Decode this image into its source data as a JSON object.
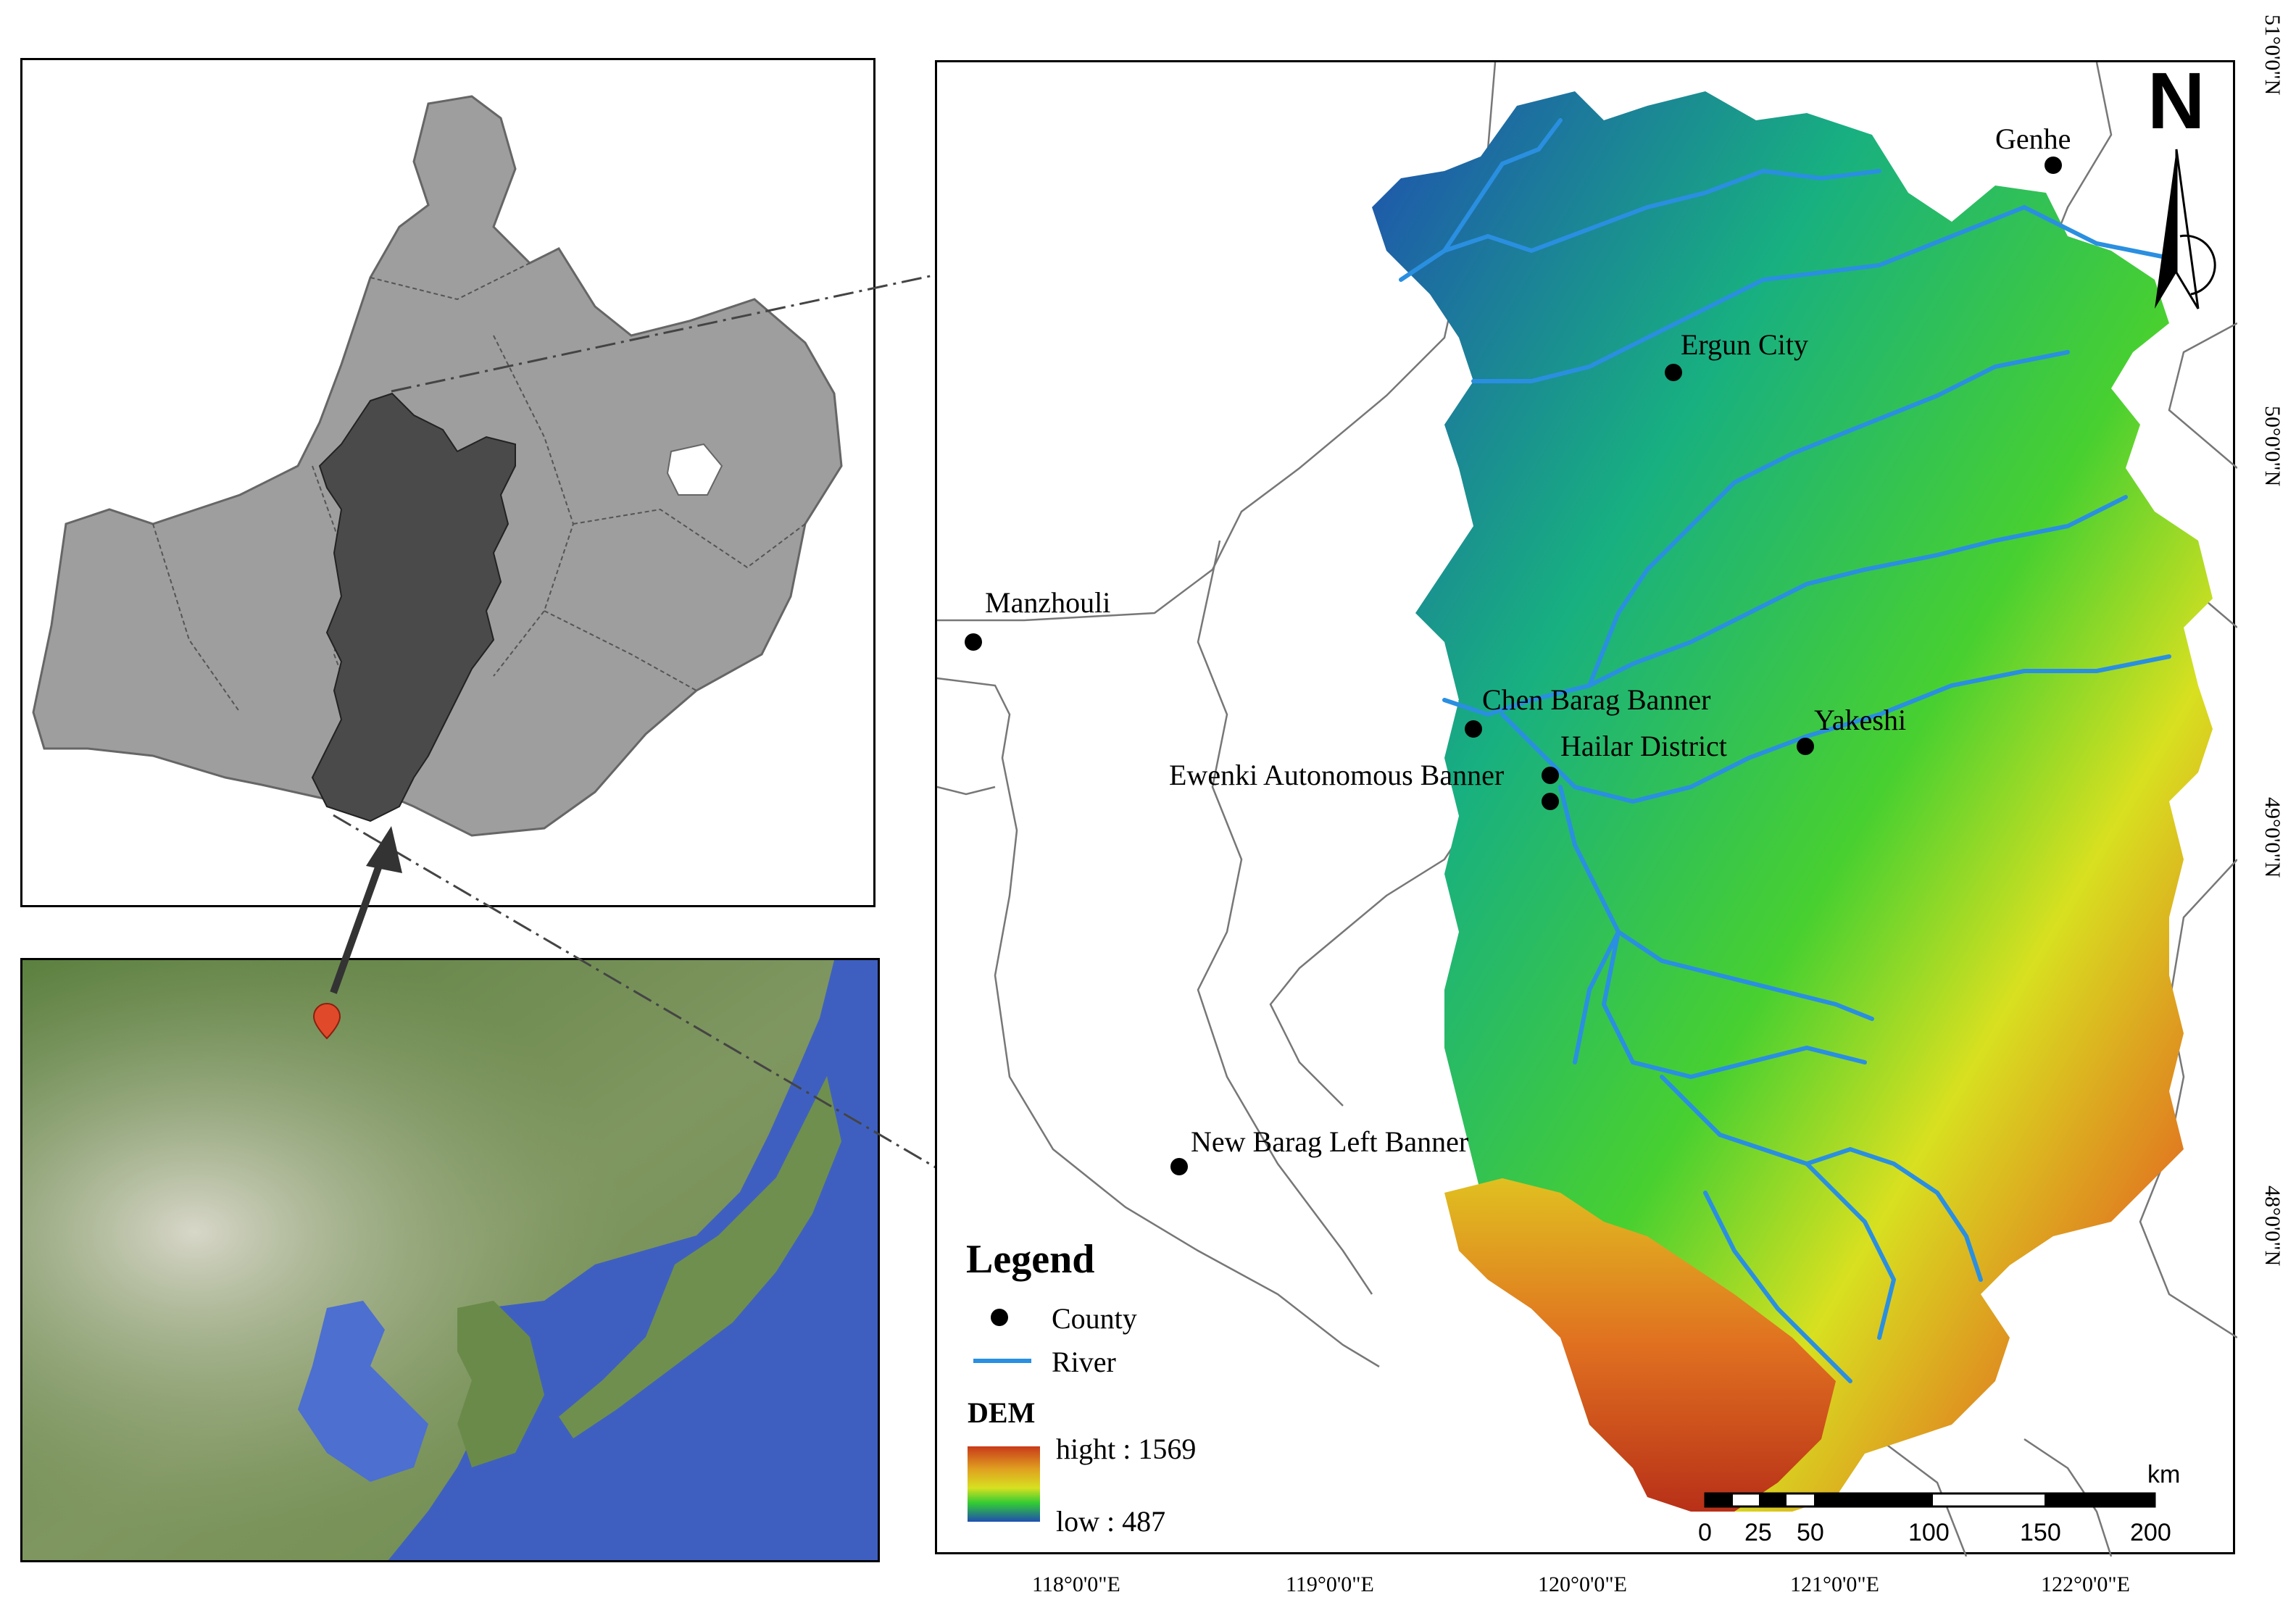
{
  "cities": [
    {
      "name": "Genhe"
    },
    {
      "name": "Ergun City"
    },
    {
      "name": "Manzhouli"
    },
    {
      "name": "Chen Barag Banner"
    },
    {
      "name": "Yakeshi"
    },
    {
      "name": "Hailar District"
    },
    {
      "name": "Ewenki Autonomous Banner"
    },
    {
      "name": "New Barag Left Banner"
    }
  ],
  "legend": {
    "title": "Legend",
    "county": "County",
    "river": "River",
    "dem_title": "DEM",
    "dem_high": "hight : 1569",
    "dem_low": "low : 487"
  },
  "north": "N",
  "scale": {
    "unit": "km",
    "ticks": [
      "0",
      "25",
      "50",
      "100",
      "150",
      "200"
    ]
  },
  "x_ticks": [
    "118°0'0\"E",
    "119°0'0\"E",
    "120°0'0\"E",
    "121°0'0\"E",
    "122°0'0\"E"
  ],
  "y_ticks": [
    "51°0'0\"N",
    "50°0'0\"N",
    "49°0'0\"N",
    "48°0'0\"N"
  ],
  "colors": {
    "dem_low": "#1f4fb0",
    "dem_mid": "#33cc33",
    "dem_high": "#c83a1a",
    "river": "#2a8fe0",
    "county_marker": "#000000",
    "overview_region": "#9e9e9e",
    "study_area": "#4a4a4a"
  }
}
